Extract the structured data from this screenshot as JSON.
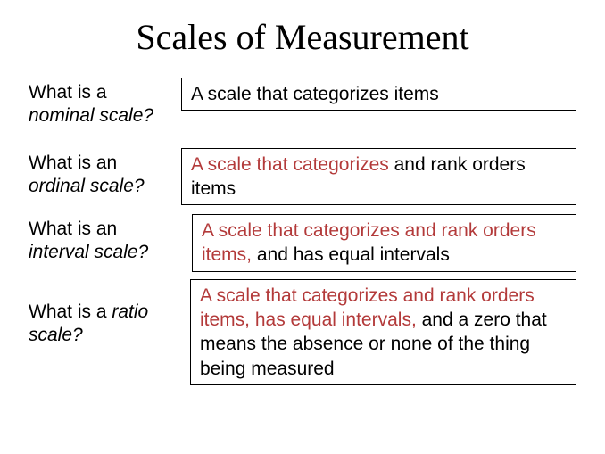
{
  "title": "Scales of Measurement",
  "title_fontsize": 40,
  "title_font_family": "Times New Roman",
  "body_fontsize": 21,
  "highlight_color": "#b33a3a",
  "text_color": "#000000",
  "border_color": "#000000",
  "background_color": "#ffffff",
  "rows": [
    {
      "q_lead": "What is a",
      "q_term": "nominal scale?",
      "a_highlight": "",
      "a_plain": "A scale that categorizes items"
    },
    {
      "q_lead": "What is an",
      "q_term": "ordinal scale?",
      "a_highlight": "A scale that categorizes",
      "a_plain": " and rank orders items"
    },
    {
      "q_lead": "What is an",
      "q_term": "interval scale?",
      "a_highlight": "A scale that categorizes and rank orders items,",
      "a_plain": " and has equal intervals"
    },
    {
      "q_lead": "What is a ",
      "q_term": "ratio scale?",
      "a_highlight": "A scale that categorizes and rank orders items, has equal intervals,",
      "a_plain": " and a zero that means the absence or none of the thing being measured"
    }
  ]
}
